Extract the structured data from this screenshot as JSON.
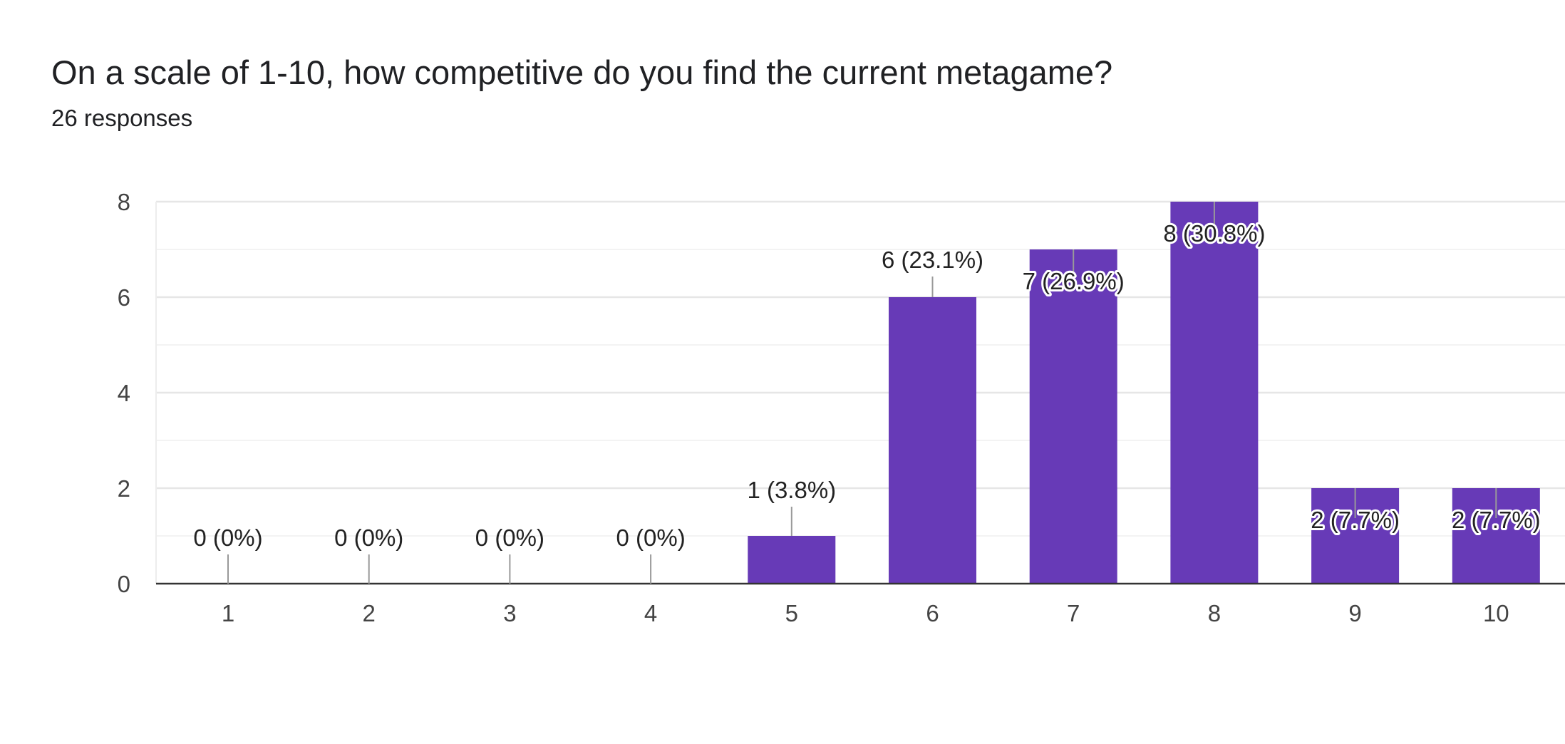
{
  "header": {
    "title": "On a scale of 1-10, how competitive do you find the current metagame?",
    "subtitle": "26 responses"
  },
  "colors": {
    "bar": "#673ab7",
    "gridline": "#ebebeb",
    "axis": "#333333",
    "label_outside": "#222222",
    "label_inside": "#ffffff",
    "leader": "#999999"
  },
  "chart_data": {
    "type": "bar",
    "title": "On a scale of 1-10, how competitive do you find the current metagame?",
    "xlabel": "",
    "ylabel": "",
    "categories": [
      "1",
      "2",
      "3",
      "4",
      "5",
      "6",
      "7",
      "8",
      "9",
      "10"
    ],
    "values": [
      0,
      0,
      0,
      0,
      1,
      6,
      7,
      8,
      2,
      2
    ],
    "data_labels": [
      "0 (0%)",
      "0 (0%)",
      "0 (0%)",
      "0 (0%)",
      "1 (3.8%)",
      "6 (23.1%)",
      "7 (26.9%)",
      "8 (30.8%)",
      "2 (7.7%)",
      "2 (7.7%)"
    ],
    "ylim": [
      0,
      8
    ],
    "yticks": [
      "0",
      "2",
      "4",
      "6",
      "8"
    ],
    "grid": true,
    "legend": "none"
  }
}
